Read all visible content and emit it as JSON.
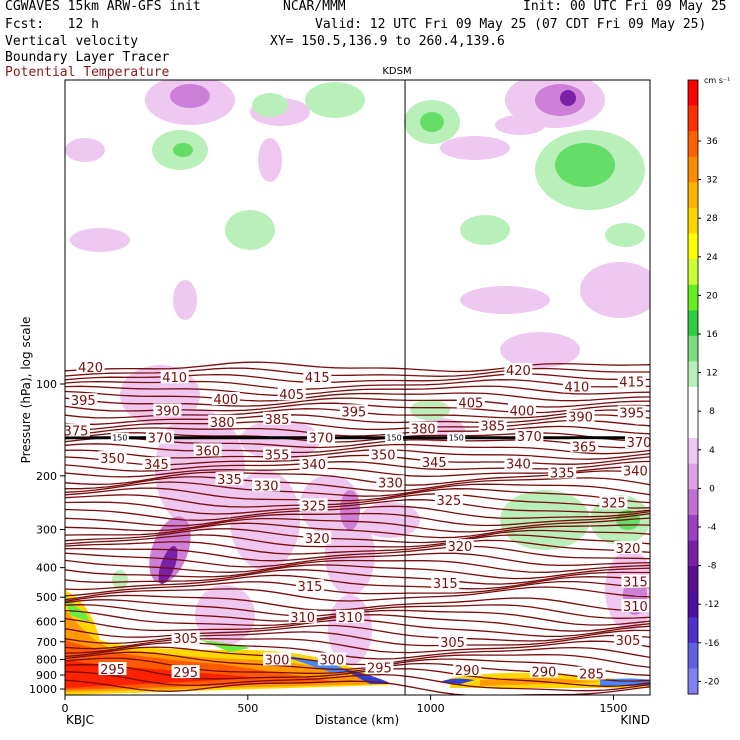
{
  "header": {
    "model": "CGWAVES 15km ARW-GFS init",
    "org": "NCAR/MMM",
    "init": "Init: 00 UTC Fri 09 May 25",
    "fcst": "Fcst:   12 h",
    "valid": "Valid: 12 UTC Fri 09 May 25 (07 CDT Fri 09 May 25)",
    "field1": "Vertical velocity",
    "xy": "XY= 150.5,136.9 to 260.4,139.6",
    "field2": "Boundary Layer Tracer",
    "field3": "Potential Temperature"
  },
  "colors": {
    "theta": "#7a0c0c",
    "panel_bg": "#ffffff"
  },
  "chart_data": {
    "type": "heatmap",
    "title": "",
    "xlabel": "Distance (km)",
    "ylabel": "Pressure (hPa), log scale",
    "station_top": "KDSM",
    "station_left": "KBJC",
    "station_right": "KIND",
    "xlim": [
      0,
      1600
    ],
    "x_ticks": [
      0,
      500,
      1000,
      1500
    ],
    "y_ticks": [
      100,
      200,
      300,
      400,
      500,
      600,
      700,
      800,
      900,
      1000
    ],
    "y_scale": "log",
    "station_x": 930,
    "colorbar": {
      "unit": "cm s⁻¹",
      "labels": [
        "36",
        "32",
        "28",
        "24",
        "20",
        "16",
        "12",
        "8",
        "4",
        "0",
        "-4",
        "-8",
        "-12",
        "-16",
        "-20"
      ],
      "colors": [
        "#ff0000",
        "#ff3000",
        "#ff6000",
        "#ff8c00",
        "#ffb300",
        "#ffd700",
        "#ffff00",
        "#ccff33",
        "#66ee22",
        "#2ecc40",
        "#7ddc7d",
        "#b9f0b9",
        "#ffffff",
        "#ffffff",
        "#eec8f0",
        "#dda0e0",
        "#c070d0",
        "#9a40c0",
        "#7a20a8",
        "#5a1090",
        "#4a10a0",
        "#5030c8",
        "#6060e0",
        "#8080f0"
      ]
    },
    "theta_labels": [
      {
        "v": "420",
        "x": 70,
        "p": 88
      },
      {
        "v": "410",
        "x": 300,
        "p": 95
      },
      {
        "v": "415",
        "x": 690,
        "p": 95
      },
      {
        "v": "420",
        "x": 1240,
        "p": 90
      },
      {
        "v": "410",
        "x": 1400,
        "p": 102
      },
      {
        "v": "415",
        "x": 1550,
        "p": 98
      },
      {
        "v": "395",
        "x": 50,
        "p": 113
      },
      {
        "v": "390",
        "x": 280,
        "p": 122
      },
      {
        "v": "400",
        "x": 440,
        "p": 112
      },
      {
        "v": "405",
        "x": 620,
        "p": 108
      },
      {
        "v": "405",
        "x": 1110,
        "p": 115
      },
      {
        "v": "400",
        "x": 1250,
        "p": 122
      },
      {
        "v": "390",
        "x": 1410,
        "p": 128
      },
      {
        "v": "395",
        "x": 1550,
        "p": 124
      },
      {
        "v": "380",
        "x": 430,
        "p": 133
      },
      {
        "v": "385",
        "x": 580,
        "p": 130
      },
      {
        "v": "395",
        "x": 790,
        "p": 123
      },
      {
        "v": "380",
        "x": 980,
        "p": 140
      },
      {
        "v": "385",
        "x": 1170,
        "p": 137
      },
      {
        "v": "375",
        "x": 30,
        "p": 142
      },
      {
        "v": "370",
        "x": 260,
        "p": 150
      },
      {
        "v": "370",
        "x": 700,
        "p": 150
      },
      {
        "v": "370",
        "x": 1270,
        "p": 148
      },
      {
        "v": "365",
        "x": 1420,
        "p": 160
      },
      {
        "v": "370",
        "x": 1570,
        "p": 155
      },
      {
        "v": "360",
        "x": 390,
        "p": 165
      },
      {
        "v": "355",
        "x": 580,
        "p": 170
      },
      {
        "v": "350",
        "x": 870,
        "p": 170
      },
      {
        "v": "350",
        "x": 130,
        "p": 175
      },
      {
        "v": "345",
        "x": 250,
        "p": 183
      },
      {
        "v": "340",
        "x": 680,
        "p": 183
      },
      {
        "v": "345",
        "x": 1010,
        "p": 180
      },
      {
        "v": "340",
        "x": 1240,
        "p": 182
      },
      {
        "v": "335",
        "x": 1360,
        "p": 195
      },
      {
        "v": "340",
        "x": 1560,
        "p": 192
      },
      {
        "v": "335",
        "x": 450,
        "p": 205
      },
      {
        "v": "330",
        "x": 550,
        "p": 215
      },
      {
        "v": "330",
        "x": 890,
        "p": 210
      },
      {
        "v": "325",
        "x": 680,
        "p": 250
      },
      {
        "v": "325",
        "x": 1050,
        "p": 240
      },
      {
        "v": "325",
        "x": 1500,
        "p": 245
      },
      {
        "v": "320",
        "x": 690,
        "p": 320
      },
      {
        "v": "320",
        "x": 1080,
        "p": 340
      },
      {
        "v": "320",
        "x": 1540,
        "p": 345
      },
      {
        "v": "315",
        "x": 670,
        "p": 460
      },
      {
        "v": "315",
        "x": 1040,
        "p": 450
      },
      {
        "v": "315",
        "x": 1560,
        "p": 445
      },
      {
        "v": "310",
        "x": 650,
        "p": 580
      },
      {
        "v": "310",
        "x": 780,
        "p": 580
      },
      {
        "v": "310",
        "x": 1560,
        "p": 535
      },
      {
        "v": "305",
        "x": 330,
        "p": 680
      },
      {
        "v": "305",
        "x": 1060,
        "p": 700
      },
      {
        "v": "305",
        "x": 1540,
        "p": 690
      },
      {
        "v": "300",
        "x": 580,
        "p": 800
      },
      {
        "v": "300",
        "x": 730,
        "p": 800
      },
      {
        "v": "295",
        "x": 130,
        "p": 860
      },
      {
        "v": "295",
        "x": 330,
        "p": 880
      },
      {
        "v": "295",
        "x": 860,
        "p": 850
      },
      {
        "v": "290",
        "x": 1100,
        "p": 865
      },
      {
        "v": "290",
        "x": 1310,
        "p": 875
      },
      {
        "v": "285",
        "x": 1440,
        "p": 890
      }
    ],
    "trop_labels": [
      {
        "v": "150",
        "x": 150,
        "p": 150
      },
      {
        "v": "150",
        "x": 900,
        "p": 150
      },
      {
        "v": "150",
        "x": 1070,
        "p": 150
      }
    ]
  }
}
